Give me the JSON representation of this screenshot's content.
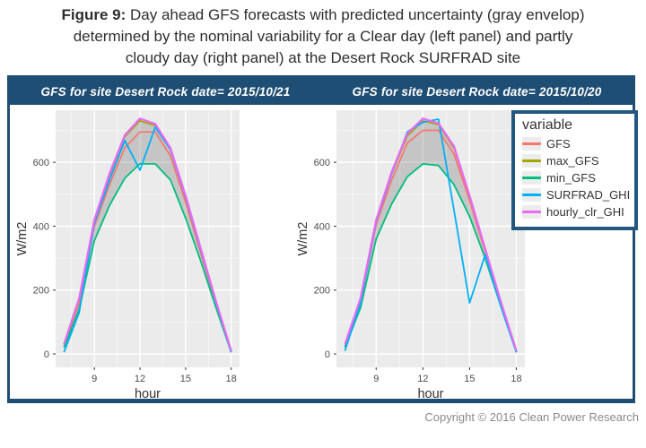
{
  "caption": {
    "label": "Figure 9:",
    "line1": "Day ahead GFS forecasts with predicted uncertainty (gray envelop)",
    "line2": "determined by the nominal variability for a Clear day (left panel) and partly",
    "line3": "cloudy day (right panel) at the Desert Rock SURFRAD site"
  },
  "footer": {
    "copyright": "Copyright © 2016 Clean Power Research"
  },
  "legend": {
    "title": "variable",
    "items": [
      {
        "label": "GFS",
        "color": "#F8766D"
      },
      {
        "label": "max_GFS",
        "color": "#A3A500"
      },
      {
        "label": "min_GFS",
        "color": "#00BF7D"
      },
      {
        "label": "SURFRAD_GHI",
        "color": "#00B0F6"
      },
      {
        "label": "hourly_clr_GHI",
        "color": "#E76BF3"
      }
    ]
  },
  "colors": {
    "frame_blue": "#1F4E74",
    "panel_bg": "#EBEBEB",
    "gridline": "#FFFFFF",
    "envelope": "rgba(95,95,95,0.27)",
    "tick_label": "#4d4d4d",
    "axis_title": "#333333"
  },
  "chart_data": [
    {
      "type": "line",
      "panel_title": "GFS for site Desert Rock date= 2015/10/21",
      "xlabel": "hour",
      "ylabel": "W/m2",
      "x": [
        7,
        8,
        9,
        10,
        11,
        12,
        13,
        14,
        15,
        16,
        17,
        18
      ],
      "x_ticks": [
        9,
        12,
        15,
        18
      ],
      "x_minor": [
        7.5,
        10.5,
        13.5,
        16.5
      ],
      "y_ticks": [
        0,
        200,
        400,
        600
      ],
      "y_minor": [
        100,
        300,
        500,
        700
      ],
      "xlim": [
        6.45,
        18.55
      ],
      "ylim": [
        -42,
        763
      ],
      "envelope": {
        "upper": "max_GFS",
        "lower": "min_GFS"
      },
      "series": [
        {
          "name": "GFS",
          "color": "#F8766D",
          "width": 1.7,
          "values": [
            25,
            160,
            400,
            530,
            645,
            695,
            695,
            620,
            475,
            315,
            155,
            5
          ]
        },
        {
          "name": "max_GFS",
          "color": "#A3A500",
          "width": 1.7,
          "values": [
            30,
            170,
            415,
            560,
            680,
            730,
            715,
            640,
            490,
            325,
            160,
            8
          ]
        },
        {
          "name": "min_GFS",
          "color": "#00BF7D",
          "width": 1.8,
          "values": [
            20,
            140,
            355,
            465,
            550,
            595,
            595,
            545,
            425,
            290,
            145,
            5
          ]
        },
        {
          "name": "SURFRAD_GHI",
          "color": "#00B0F6",
          "width": 1.8,
          "values": [
            5,
            130,
            410,
            545,
            668,
            575,
            710,
            640,
            490,
            325,
            160,
            5
          ]
        },
        {
          "name": "hourly_clr_GHI",
          "color": "#E76BF3",
          "width": 2.3,
          "values": [
            30,
            175,
            420,
            565,
            685,
            737,
            720,
            645,
            495,
            330,
            165,
            10
          ]
        }
      ]
    },
    {
      "type": "line",
      "panel_title": "GFS for site Desert Rock date= 2015/10/20",
      "xlabel": "hour",
      "ylabel": "W/m2",
      "x": [
        7,
        8,
        9,
        10,
        11,
        12,
        13,
        14,
        15,
        16,
        17,
        18
      ],
      "x_ticks": [
        9,
        12,
        15,
        18
      ],
      "x_minor": [
        7.5,
        10.5,
        13.5,
        16.5
      ],
      "y_ticks": [
        0,
        200,
        400,
        600
      ],
      "y_minor": [
        100,
        300,
        500,
        700
      ],
      "xlim": [
        6.45,
        18.55
      ],
      "ylim": [
        -42,
        763
      ],
      "envelope": {
        "upper": "max_GFS",
        "lower": "min_GFS"
      },
      "series": [
        {
          "name": "GFS",
          "color": "#F8766D",
          "width": 1.7,
          "values": [
            25,
            165,
            405,
            545,
            660,
            700,
            700,
            625,
            480,
            320,
            160,
            5
          ]
        },
        {
          "name": "max_GFS",
          "color": "#A3A500",
          "width": 1.7,
          "values": [
            30,
            175,
            418,
            565,
            683,
            730,
            718,
            645,
            492,
            328,
            162,
            8
          ]
        },
        {
          "name": "min_GFS",
          "color": "#00BF7D",
          "width": 1.8,
          "values": [
            20,
            145,
            360,
            470,
            555,
            595,
            590,
            530,
            430,
            300,
            150,
            5
          ]
        },
        {
          "name": "SURFRAD_GHI",
          "color": "#00B0F6",
          "width": 1.8,
          "values": [
            10,
            160,
            415,
            565,
            695,
            725,
            735,
            450,
            160,
            310,
            150,
            5
          ]
        },
        {
          "name": "hourly_clr_GHI",
          "color": "#E76BF3",
          "width": 2.3,
          "values": [
            30,
            175,
            420,
            570,
            690,
            737,
            722,
            650,
            495,
            330,
            165,
            10
          ]
        }
      ]
    }
  ]
}
